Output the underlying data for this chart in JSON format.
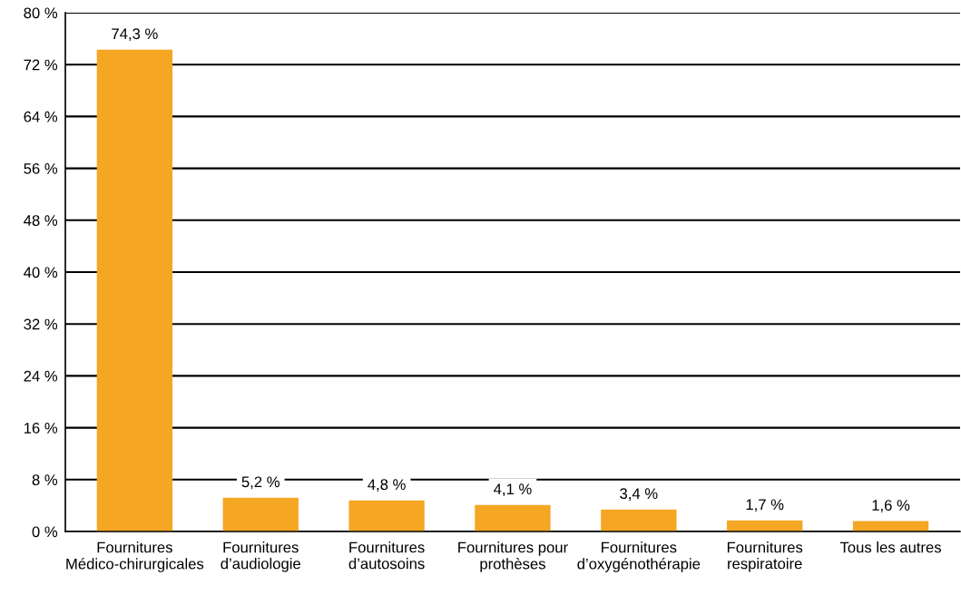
{
  "chart_data": {
    "type": "bar",
    "categories": [
      "Fournitures\nMédico-chirurgicales",
      "Fournitures\nd’audiologie",
      "Fournitures\nd’autosoins",
      "Fournitures pour\nprothèses",
      "Fournitures\nd’oxygénothérapie",
      "Fournitures\nrespiratoire",
      "Tous les autres"
    ],
    "values": [
      74.3,
      5.2,
      4.8,
      4.1,
      3.4,
      1.7,
      1.6
    ],
    "value_labels": [
      "74,3 %",
      "5,2 %",
      "4,8 %",
      "4,1 %",
      "3,4 %",
      "1,7 %",
      "1,6 %"
    ],
    "color": "#f5a623",
    "ylim": [
      0,
      80
    ],
    "yticks": [
      {
        "value": 0,
        "label": "0 %"
      },
      {
        "value": 8,
        "label": "8 %"
      },
      {
        "value": 16,
        "label": "16 %"
      },
      {
        "value": 24,
        "label": "24 %"
      },
      {
        "value": 32,
        "label": "32 %"
      },
      {
        "value": 40,
        "label": "40 %"
      },
      {
        "value": 48,
        "label": "48 %"
      },
      {
        "value": 56,
        "label": "56 %"
      },
      {
        "value": 64,
        "label": "64 %"
      },
      {
        "value": 72,
        "label": "72 %"
      },
      {
        "value": 80,
        "label": "80 %"
      }
    ],
    "grid": "y",
    "legend": false
  }
}
